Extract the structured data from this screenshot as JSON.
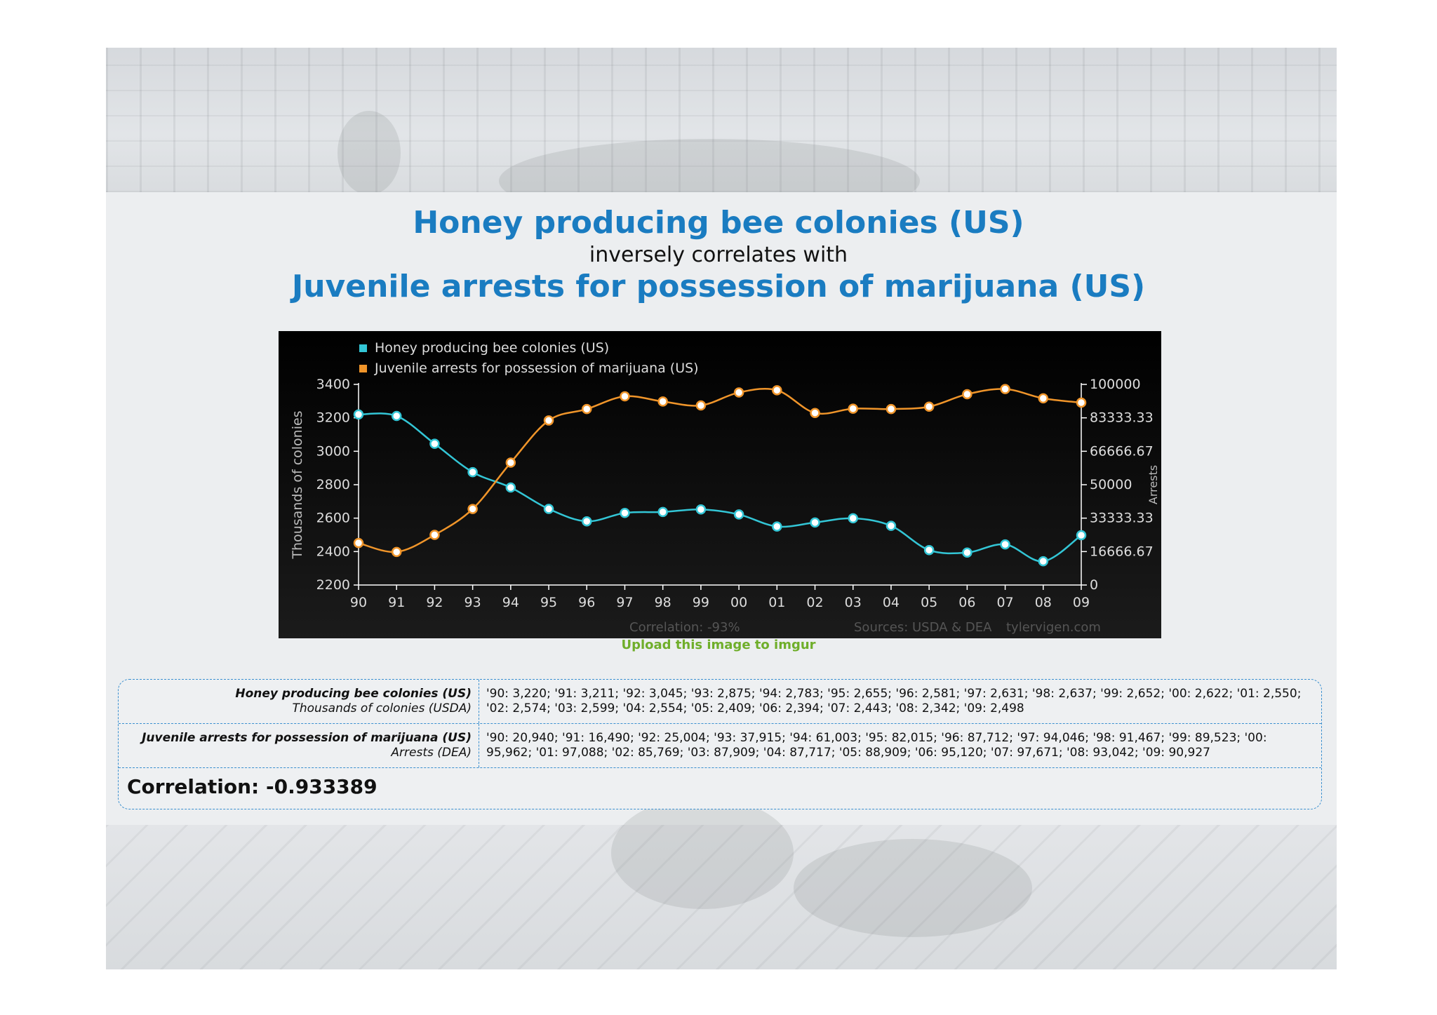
{
  "header": {
    "title1": "Honey producing bee colonies (US)",
    "subtitle": "inversely correlates with",
    "title2": "Juvenile arrests for possession of marijuana (US)"
  },
  "chart_data": {
    "type": "line",
    "categories": [
      "90",
      "91",
      "92",
      "93",
      "94",
      "95",
      "96",
      "97",
      "98",
      "99",
      "00",
      "01",
      "02",
      "03",
      "04",
      "05",
      "06",
      "07",
      "08",
      "09"
    ],
    "series": [
      {
        "name": "Honey producing bee colonies (US)",
        "color": "#33c6d6",
        "axis": "left",
        "values": [
          3220,
          3211,
          3045,
          2875,
          2783,
          2655,
          2581,
          2631,
          2637,
          2652,
          2622,
          2550,
          2574,
          2599,
          2554,
          2409,
          2394,
          2443,
          2342,
          2498
        ]
      },
      {
        "name": "Juvenile arrests for possession of marijuana (US)",
        "color": "#f0952a",
        "axis": "right",
        "values": [
          20940,
          16490,
          25004,
          37915,
          61003,
          82015,
          87712,
          94046,
          91467,
          89523,
          95962,
          97088,
          85769,
          87909,
          87717,
          88909,
          95120,
          97671,
          93042,
          90927
        ]
      }
    ],
    "ylabel": "Thousands of colonies",
    "ylabel_right": "Arrests",
    "ylim": [
      2200,
      3400
    ],
    "ylim_right": [
      0,
      100000
    ],
    "yticks": [
      "3400",
      "3200",
      "3000",
      "2800",
      "2600",
      "2400",
      "2200"
    ],
    "yticks_right": [
      "100000",
      "83333.33",
      "66666.67",
      "50000",
      "33333.33",
      "16666.67",
      "0"
    ],
    "legend_position": "top-left",
    "grid": false,
    "footer": {
      "correlation": "Correlation: -93%",
      "sources": "Sources: USDA & DEA",
      "site": "tylervigen.com"
    }
  },
  "upload_link": "Upload this image to imgur",
  "table": {
    "rows": [
      {
        "label": "Honey producing bee colonies (US)",
        "sublabel": "Thousands of colonies (USDA)",
        "values": "'90: 3,220; '91: 3,211; '92: 3,045; '93: 2,875; '94: 2,783; '95: 2,655; '96: 2,581; '97: 2,631; '98: 2,637; '99: 2,652; '00: 2,622; '01: 2,550; '02: 2,574; '03: 2,599; '04: 2,554; '05: 2,409; '06: 2,394; '07: 2,443; '08: 2,342; '09: 2,498"
      },
      {
        "label": "Juvenile arrests for possession of marijuana (US)",
        "sublabel": "Arrests (DEA)",
        "values": "'90: 20,940; '91: 16,490; '92: 25,004; '93: 37,915; '94: 61,003; '95: 82,015; '96: 87,712; '97: 94,046; '98: 91,467; '99: 89,523; '00: 95,962; '01: 97,088; '02: 85,769; '03: 87,909; '04: 87,717; '05: 88,909; '06: 95,120; '07: 97,671; '08: 93,042; '09: 90,927"
      }
    ],
    "correlation": "Correlation: -0.933389"
  }
}
